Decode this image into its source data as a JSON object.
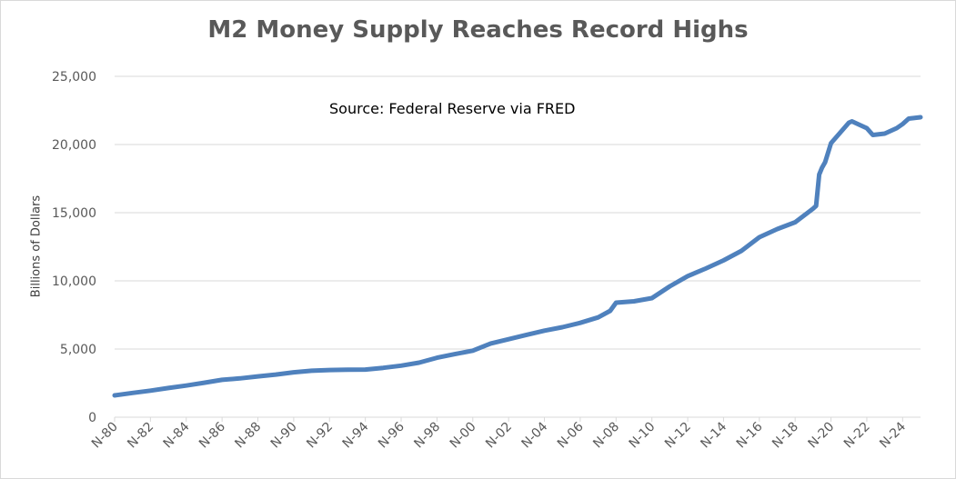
{
  "chart_data": {
    "type": "line",
    "title": "M2 Money Supply Reaches Record Highs",
    "annotation": "Source: Federal Reserve via FRED",
    "xlabel": "",
    "ylabel": "Billions of Dollars",
    "ylim": [
      0,
      25000
    ],
    "grid": true,
    "legend": "none",
    "line_color": "#4f81bd",
    "grid_color": "#d9d9d9",
    "y_ticks": [
      0,
      5000,
      10000,
      15000,
      20000,
      25000
    ],
    "y_tick_labels": [
      "0",
      "5,000",
      "10,000",
      "15,000",
      "20,000",
      "25,000"
    ],
    "x_tick_labels": [
      "N-80",
      "N-82",
      "N-84",
      "N-86",
      "N-88",
      "N-90",
      "N-92",
      "N-94",
      "N-96",
      "N-98",
      "N-00",
      "N-02",
      "N-04",
      "N-06",
      "N-08",
      "N-10",
      "N-12",
      "N-14",
      "N-16",
      "N-18",
      "N-20",
      "N-22",
      "N-24"
    ],
    "x_tick_values": [
      1980.83,
      1982.83,
      1984.83,
      1986.83,
      1988.83,
      1990.83,
      1992.83,
      1994.83,
      1996.83,
      1998.83,
      2000.83,
      2002.83,
      2004.83,
      2006.83,
      2008.83,
      2010.83,
      2012.83,
      2014.83,
      2016.83,
      2018.83,
      2020.83,
      2022.83,
      2024.83
    ],
    "xlim": [
      1980.83,
      2025.83
    ],
    "series": [
      {
        "x": [
          1980.83,
          1981.83,
          1982.83,
          1983.83,
          1984.83,
          1985.83,
          1986.83,
          1987.83,
          1988.83,
          1989.83,
          1990.83,
          1991.83,
          1992.83,
          1993.83,
          1994.83,
          1995.83,
          1996.83,
          1997.83,
          1998.83,
          1999.83,
          2000.83,
          2001.83,
          2002.83,
          2003.83,
          2004.83,
          2005.83,
          2006.83,
          2007.83,
          2008.5,
          2008.83,
          2009.83,
          2010.83,
          2011.83,
          2012.83,
          2013.83,
          2014.83,
          2015.83,
          2016.83,
          2017.83,
          2018.83,
          2019.83,
          2020.0,
          2020.17,
          2020.33,
          2020.5,
          2020.83,
          2021.83,
          2022.0,
          2022.33,
          2022.83,
          2023.17,
          2023.83,
          2024.5,
          2024.83,
          2025.17,
          2025.83
        ],
        "y": [
          1600,
          1780,
          1950,
          2140,
          2320,
          2530,
          2740,
          2850,
          2990,
          3130,
          3290,
          3410,
          3460,
          3480,
          3490,
          3620,
          3780,
          4000,
          4360,
          4630,
          4880,
          5410,
          5720,
          6040,
          6350,
          6600,
          6920,
          7320,
          7800,
          8400,
          8500,
          8730,
          9600,
          10350,
          10900,
          11500,
          12200,
          13200,
          13800,
          14300,
          15300,
          15500,
          17800,
          18300,
          18700,
          20100,
          21600,
          21700,
          21500,
          21200,
          20700,
          20800,
          21200,
          21500,
          21900,
          22000
        ]
      }
    ]
  }
}
